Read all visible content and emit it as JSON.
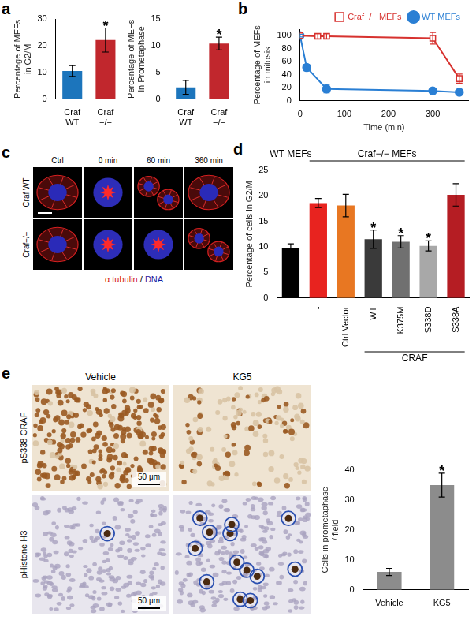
{
  "panel_labels": [
    "a",
    "b",
    "c",
    "d",
    "e"
  ],
  "chart_data": [
    {
      "type": "bar",
      "y_label": "Percentage of MEFs in G2/M",
      "categories": [
        "Craf WT",
        "Craf −/−"
      ],
      "values": [
        10.5,
        22.1
      ],
      "errors": [
        2.0,
        4.5
      ],
      "colors": [
        "#1c75bc",
        "#c1272d"
      ],
      "ylim": [
        0,
        30
      ],
      "yticks": [
        0,
        10,
        20,
        30
      ],
      "grid": false,
      "annotations": [
        {
          "category": "Craf −/−",
          "text": "*"
        }
      ]
    },
    {
      "type": "bar",
      "y_label": "Percentage of MEFs in Prometaphase",
      "categories": [
        "Craf WT",
        "Craf −/−"
      ],
      "values": [
        2.2,
        10.4
      ],
      "errors": [
        1.3,
        1.2
      ],
      "colors": [
        "#1c75bc",
        "#c1272d"
      ],
      "ylim": [
        0,
        15
      ],
      "yticks": [
        0,
        5,
        10,
        15
      ],
      "grid": false,
      "annotations": [
        {
          "category": "Craf −/−",
          "text": "*"
        }
      ]
    },
    {
      "type": "line",
      "y_label": "Percentage of MEFs in mitosis",
      "x_label": "Time (min)",
      "xlim": [
        0,
        380
      ],
      "xticks": [
        0,
        100,
        200,
        300
      ],
      "ylim": [
        0,
        110
      ],
      "yticks": [
        0,
        20,
        40,
        60,
        80,
        100
      ],
      "grid": false,
      "legend": "top",
      "series": [
        {
          "name": "Craf−/− MEFs",
          "color": "#d7322f",
          "marker": "open square",
          "x": [
            0,
            40,
            60,
            300,
            360
          ],
          "values": [
            100,
            99,
            99,
            96,
            34
          ],
          "errors": [
            0,
            4,
            4,
            9,
            7
          ]
        },
        {
          "name": "WT MEFs",
          "color": "#2a7fd4",
          "marker": "circle",
          "x": [
            0,
            15,
            60,
            300,
            360
          ],
          "values": [
            100,
            51,
            18,
            15,
            13
          ],
          "errors": [
            2,
            5,
            6,
            4,
            4
          ]
        }
      ]
    },
    {
      "type": "bar",
      "y_label": "Percentage of cells in G2/M",
      "categories": [
        null,
        "-",
        "Ctrl Vector",
        "WT",
        "K375M",
        "S338D",
        "S338A"
      ],
      "values": [
        9.8,
        18.6,
        18.1,
        11.5,
        11.0,
        10.2,
        20.2
      ],
      "errors": [
        0.8,
        0.9,
        2.2,
        1.8,
        1.2,
        1.0,
        2.2
      ],
      "colors": [
        "#000000",
        "#e8231f",
        "#e87722",
        "#3a3a3a",
        "#707070",
        "#a8a8a8",
        "#b51d23"
      ],
      "ylim": [
        0,
        25
      ],
      "yticks": [
        0,
        5,
        10,
        15,
        20,
        25
      ],
      "grid": false,
      "annotations": [
        {
          "category": "WT",
          "text": "*"
        },
        {
          "category": "K375M",
          "text": "*"
        },
        {
          "category": "S338D",
          "text": "*"
        }
      ],
      "group_labels": [
        {
          "text": "WT MEFs",
          "first": 0,
          "last": 0,
          "position": "top"
        },
        {
          "text": "Craf−/− MEFs",
          "first": 1,
          "last": 6,
          "position": "top"
        },
        {
          "text": "CRAF",
          "first": 3,
          "last": 6,
          "position": "bottom"
        }
      ]
    },
    {
      "type": "bar",
      "y_label": "Cells in prometaphase / field",
      "categories": [
        "Vehicle",
        "KG5"
      ],
      "values": [
        6,
        35
      ],
      "errors": [
        1.2,
        4
      ],
      "color": "#8c8c8c",
      "ylim": [
        0,
        40
      ],
      "yticks": [
        0,
        10,
        20,
        30,
        40
      ],
      "grid": false,
      "annotations": [
        {
          "category": "KG5",
          "text": "*"
        }
      ]
    }
  ],
  "images": {
    "c": {
      "columns": [
        "Ctrl",
        "0 min",
        "60 min",
        "360 min"
      ],
      "rows": [
        "Craf WT",
        "Craf−/−"
      ],
      "stains": [
        {
          "text": "α tubulin",
          "color": "#d42020"
        },
        {
          "text": "DNA",
          "color": "#1a1aa0"
        }
      ],
      "separator": "/"
    },
    "e": {
      "columns": [
        "Vehicle",
        "KG5"
      ],
      "rows": [
        "pS338 CRAF",
        "pHistone H3"
      ],
      "scale_bar": "50 μm"
    }
  }
}
